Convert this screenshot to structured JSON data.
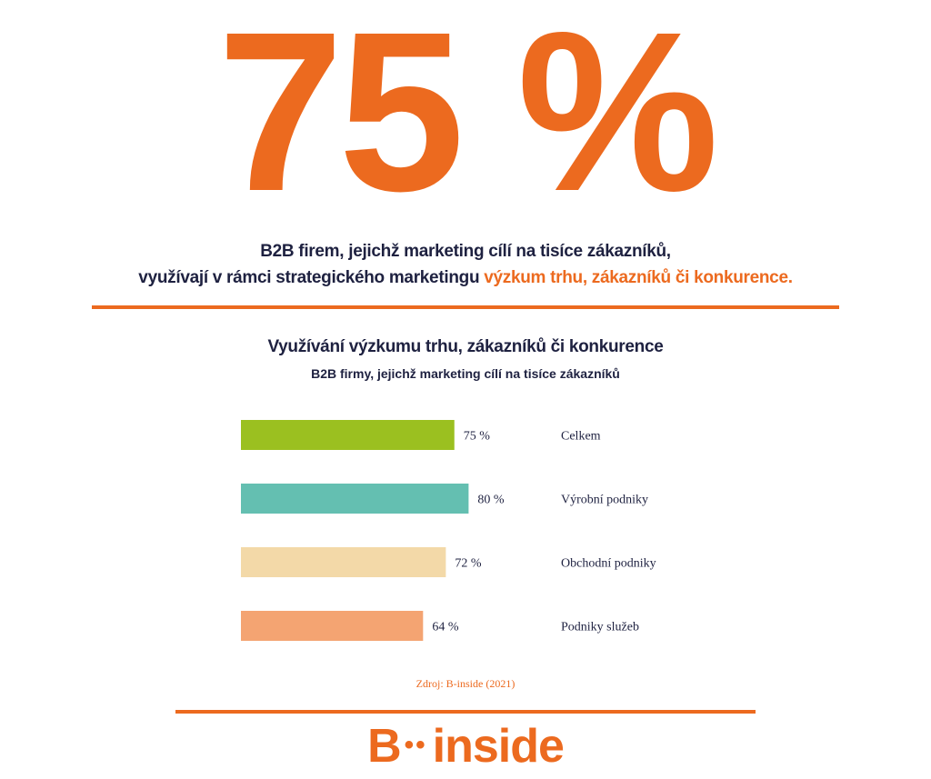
{
  "headline": {
    "stat": "75 %",
    "line1": "B2B firem, jejichž marketing cílí na tisíce zákazníků,",
    "line2_plain": "využívají v rámci strategického marketingu ",
    "line2_accent": "výzkum trhu, zákazníků či konkurence."
  },
  "chart_data": {
    "type": "bar",
    "orientation": "horizontal",
    "title": "Využívání výzkumu trhu, zákazníků či konkurence",
    "subtitle": "B2B firmy, jejichž marketing cílí na tisíce zákazníků",
    "categories": [
      "Celkem",
      "Výrobní podniky",
      "Obchodní podniky",
      "Podniky služeb"
    ],
    "values": [
      75,
      80,
      72,
      64
    ],
    "value_labels": [
      "75 %",
      "80 %",
      "72 %",
      "64 %"
    ],
    "colors": [
      "#9bc020",
      "#64bfb1",
      "#f3d9a8",
      "#f4a472"
    ],
    "xlim": [
      0,
      100
    ],
    "grid": false,
    "legend": "none"
  },
  "source": "Zdroj: B-inside (2021)",
  "logo": {
    "left": "B",
    "dots": "••",
    "right": "inside"
  },
  "colors": {
    "accent": "#ec6a1f",
    "text": "#1e2140"
  }
}
